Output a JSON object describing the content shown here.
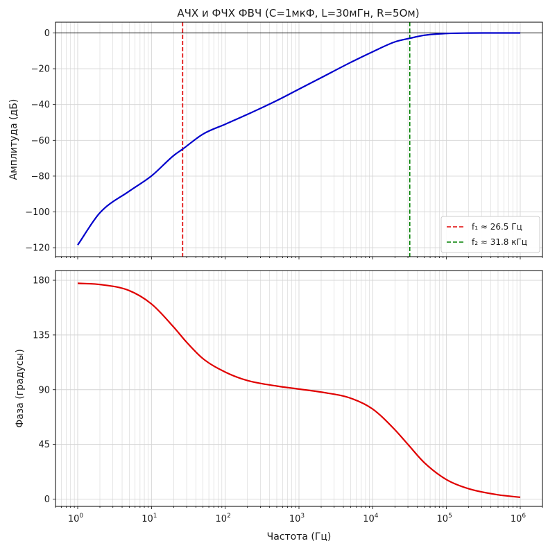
{
  "chart_data": [
    {
      "type": "line",
      "title": "АЧХ и ФЧХ ФВЧ (C=1мкФ, L=30мГн, R=5Ом)",
      "xlabel": "",
      "ylabel": "Амплитуда (дБ)",
      "x_scale": "log",
      "xlim": [
        0.5,
        2000000
      ],
      "ylim": [
        -125,
        6
      ],
      "grid": true,
      "legend_position": "lower-right",
      "x_ticks": [
        1,
        10,
        100,
        1000,
        10000,
        100000,
        1000000
      ],
      "x_tick_labels": [
        {
          "base": "10",
          "exp": "0"
        },
        {
          "base": "10",
          "exp": "1"
        },
        {
          "base": "10",
          "exp": "2"
        },
        {
          "base": "10",
          "exp": "3"
        },
        {
          "base": "10",
          "exp": "4"
        },
        {
          "base": "10",
          "exp": "5"
        },
        {
          "base": "10",
          "exp": "6"
        }
      ],
      "y_ticks": [
        0,
        -20,
        -40,
        -60,
        -80,
        -100,
        -120
      ],
      "y_tick_labels": [
        "0",
        "−20",
        "−40",
        "−60",
        "−80",
        "−100",
        "−120"
      ],
      "horizontal_lines": [
        0
      ],
      "vertical_lines": [
        {
          "x": 26.5,
          "color": "#e00000",
          "style": "dashed",
          "legend": "f₁ ≈ 26.5 Гц"
        },
        {
          "x": 31800,
          "color": "#008000",
          "style": "dashed",
          "legend": "f₂ ≈ 31.8 кГц"
        }
      ],
      "series": [
        {
          "color": "#0000cc",
          "x": [
            1,
            2,
            5,
            10,
            20,
            26.5,
            50,
            100,
            200,
            500,
            1000,
            2000,
            5000,
            10000,
            20000,
            31800,
            50000,
            100000,
            200000,
            500000,
            1000000
          ],
          "values": [
            -118.5,
            -100.5,
            -88.4,
            -79.9,
            -68.5,
            -64.9,
            -56.5,
            -51,
            -45.5,
            -37.8,
            -31.4,
            -25,
            -16.5,
            -10.5,
            -5,
            -3,
            -1.3,
            -0.3,
            -0.05,
            0,
            0
          ]
        }
      ]
    },
    {
      "type": "line",
      "title": "",
      "xlabel": "Частота (Гц)",
      "ylabel": "Фаза (градусы)",
      "x_scale": "log",
      "xlim": [
        0.5,
        2000000
      ],
      "ylim": [
        -6,
        188
      ],
      "grid": true,
      "x_ticks": [
        1,
        10,
        100,
        1000,
        10000,
        100000,
        1000000
      ],
      "x_tick_labels": [
        {
          "base": "10",
          "exp": "0"
        },
        {
          "base": "10",
          "exp": "1"
        },
        {
          "base": "10",
          "exp": "2"
        },
        {
          "base": "10",
          "exp": "3"
        },
        {
          "base": "10",
          "exp": "4"
        },
        {
          "base": "10",
          "exp": "5"
        },
        {
          "base": "10",
          "exp": "6"
        }
      ],
      "y_ticks": [
        0,
        45,
        90,
        135,
        180
      ],
      "y_tick_labels": [
        "0",
        "45",
        "90",
        "135",
        "180"
      ],
      "series": [
        {
          "color": "#e00000",
          "x": [
            1,
            2,
            5,
            10,
            20,
            30,
            50,
            100,
            200,
            500,
            1000,
            2000,
            5000,
            10000,
            20000,
            30000,
            50000,
            100000,
            200000,
            500000,
            1000000
          ],
          "values": [
            177.5,
            176.5,
            171.5,
            160.5,
            141.5,
            129,
            115.5,
            104.5,
            97.5,
            93,
            90.5,
            88,
            83,
            74,
            57,
            45,
            30,
            16,
            8.5,
            3.5,
            1.5
          ]
        }
      ]
    }
  ]
}
